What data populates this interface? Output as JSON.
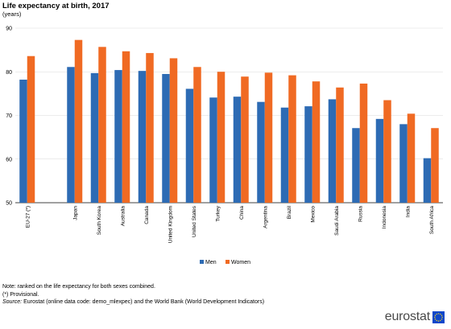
{
  "chart_data": {
    "type": "bar",
    "title": "Life expectancy at birth, 2017",
    "subtitle": "(years)",
    "xlabel": "",
    "ylabel": "",
    "ylim": [
      50,
      90
    ],
    "yticks": [
      50,
      60,
      70,
      80,
      90
    ],
    "grid": true,
    "legend_position": "bottom-center",
    "categories": [
      "EU-27 (*)",
      "",
      "Japan",
      "South Korea",
      "Australia",
      "Canada",
      "United Kingdom",
      "United States",
      "Turkey",
      "China",
      "Argentina",
      "Brazil",
      "Mexico",
      "Saudi Arabia",
      "Russia",
      "Indonesia",
      "India",
      "South Africa"
    ],
    "series": [
      {
        "name": "Men",
        "color": "#2d6bb4",
        "values": [
          78.2,
          null,
          81.1,
          79.7,
          80.4,
          80.2,
          79.5,
          76.1,
          74.1,
          74.3,
          73.1,
          71.8,
          72.1,
          73.7,
          67.1,
          69.2,
          68.0,
          60.2
        ]
      },
      {
        "name": "Women",
        "color": "#f06a23",
        "values": [
          83.6,
          null,
          87.3,
          85.7,
          84.7,
          84.3,
          83.1,
          81.1,
          80.0,
          78.9,
          79.8,
          79.2,
          77.8,
          76.4,
          77.3,
          73.5,
          70.4,
          67.1
        ]
      }
    ]
  },
  "notes": {
    "line1": "Note: ranked on the life expectancy for both sexes combined.",
    "line2": "(*) Provisional.",
    "source_label": "Source:",
    "source_text": " Eurostat (online data code: demo_mlexpec) and the World Bank (World Development Indicators)"
  },
  "logo": {
    "text": "eurostat",
    "flag_color": "#0e47cb",
    "star_color": "#ffd617"
  }
}
